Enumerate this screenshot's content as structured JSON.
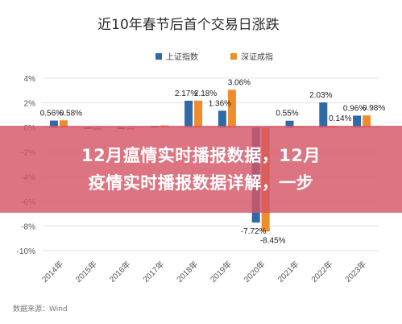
{
  "chart_data": {
    "type": "bar",
    "title": "近10年春节后首个交易日涨跌",
    "categories": [
      "2014年",
      "2015年",
      "2016年",
      "2017年",
      "2018年",
      "2019年",
      "2020年",
      "2021年",
      "2022年",
      "2023年"
    ],
    "series": [
      {
        "name": "上证指数",
        "color": "#2e6aa6",
        "values": [
          0.56,
          -0.11,
          -0.13,
          0.11,
          2.17,
          1.36,
          -7.72,
          0.55,
          2.03,
          0.96
        ]
      },
      {
        "name": "深证成指",
        "color": "#ef8d2c",
        "values": [
          0.58,
          -0.2,
          -0.18,
          0.17,
          2.18,
          3.06,
          -8.45,
          -0.01,
          0.14,
          0.98
        ]
      }
    ],
    "data_labels_visible": [
      [
        "0.56%",
        "",
        "",
        "",
        "2.17%",
        "1.36%",
        "-7.72%",
        "0.55%",
        "2.03%",
        "0.96%"
      ],
      [
        "0.58%",
        "",
        "",
        "",
        "2.18%",
        "3.06%",
        "-8.45%",
        "",
        "0.14%",
        "0.98%"
      ]
    ],
    "ylim": [
      -10,
      4
    ],
    "yticks": [
      4,
      2,
      0,
      -2,
      -4,
      -6,
      -8,
      -10
    ],
    "ytick_labels": [
      "4%",
      "2%",
      "0%",
      "-2%",
      "-4%",
      "-6%",
      "-8%",
      "-10%"
    ],
    "grid": true,
    "legend": "top-center"
  },
  "source": "数据来源：Wind",
  "overlay": {
    "line1": "12月瘟情实时播报数据，12月",
    "line2": "疫情实时播报数据详解，一步"
  }
}
